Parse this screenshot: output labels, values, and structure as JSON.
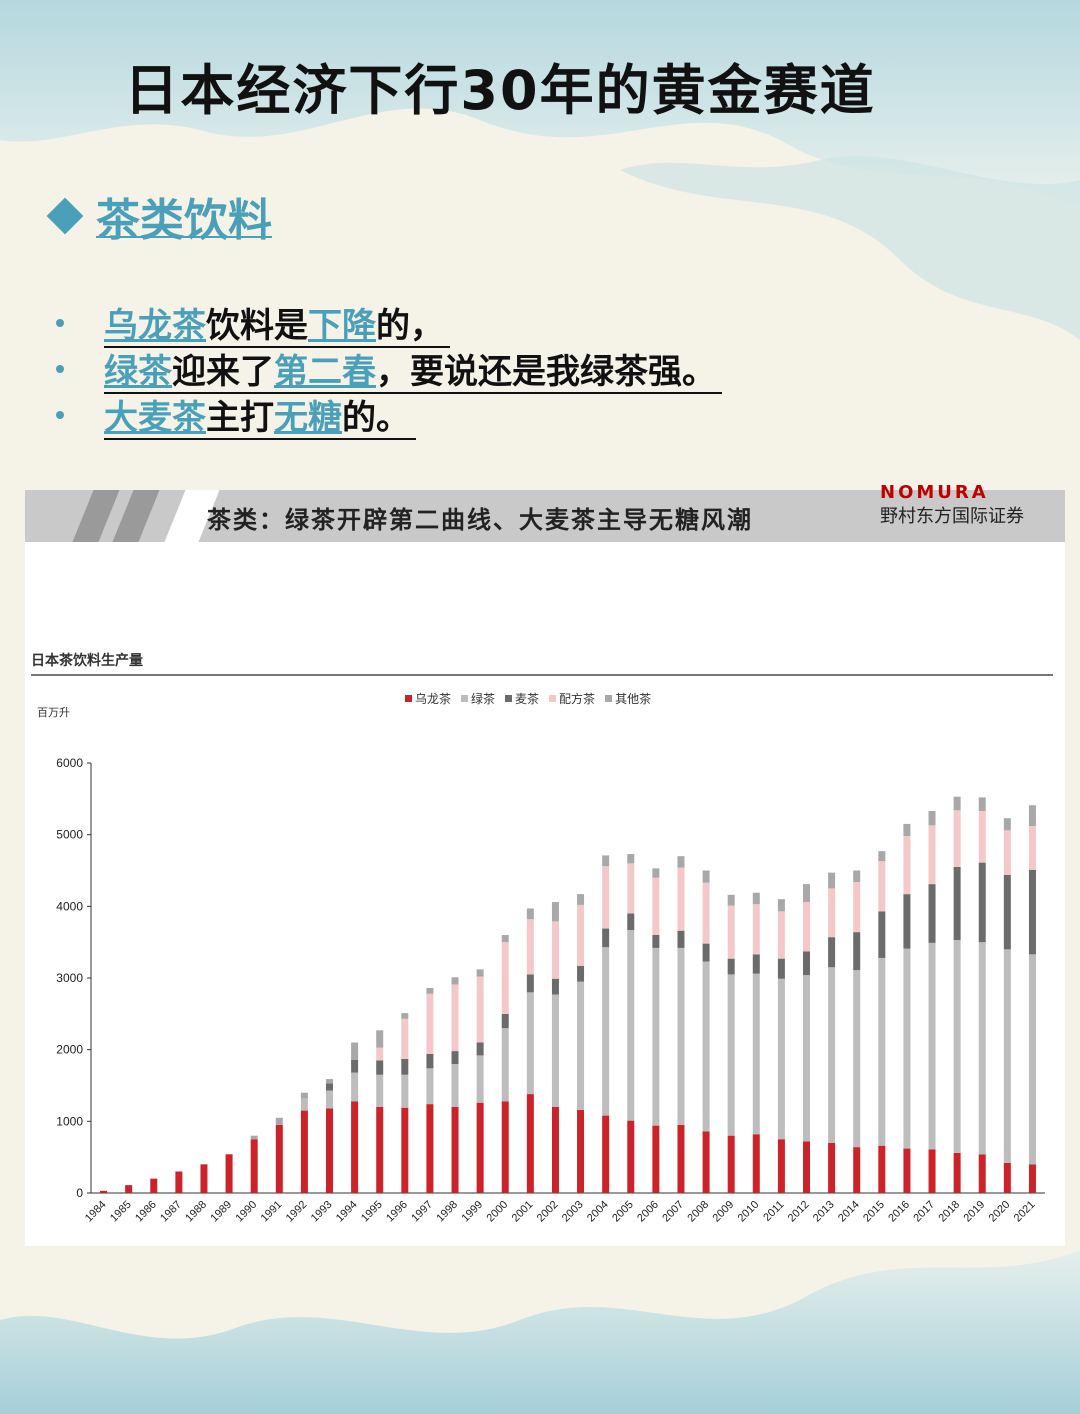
{
  "page": {
    "title": "日本经济下行30年的黄金赛道",
    "section": "茶类饮料",
    "bullets": [
      [
        {
          "t": "乌龙茶",
          "h": true
        },
        {
          "t": "饮料是",
          "h": false
        },
        {
          "t": "下降",
          "h": true
        },
        {
          "t": "的，",
          "h": false
        }
      ],
      [
        {
          "t": "绿茶",
          "h": true
        },
        {
          "t": "迎来了",
          "h": false
        },
        {
          "t": "第二春",
          "h": true
        },
        {
          "t": "，要说还是我绿茶强。",
          "h": false
        }
      ],
      [
        {
          "t": "大麦茶",
          "h": true
        },
        {
          "t": "主打",
          "h": false
        },
        {
          "t": "无糖",
          "h": true
        },
        {
          "t": "的。",
          "h": false
        }
      ]
    ]
  },
  "banner": {
    "title": "茶类：绿茶开辟第二曲线、大麦茶主导无糖风潮",
    "brand_logo": "NOMURA",
    "brand_name": "野村东方国际证券"
  },
  "chart_data": {
    "type": "bar",
    "stacked": true,
    "title": "日本茶饮料生产量",
    "ylabel": "百万升",
    "ylim": [
      0,
      6000
    ],
    "yticks": [
      "0",
      "1000",
      "2000",
      "3000",
      "4000",
      "5000",
      "6000"
    ],
    "legend_position": "top-center",
    "grid": false,
    "categories": [
      "1984",
      "1985",
      "1986",
      "1987",
      "1988",
      "1989",
      "1990",
      "1991",
      "1992",
      "1993",
      "1994",
      "1995",
      "1996",
      "1997",
      "1998",
      "1999",
      "2000",
      "2001",
      "2002",
      "2003",
      "2004",
      "2005",
      "2006",
      "2007",
      "2008",
      "2009",
      "2010",
      "2011",
      "2012",
      "2013",
      "2014",
      "2015",
      "2016",
      "2017",
      "2018",
      "2019",
      "2020",
      "2021"
    ],
    "series": [
      {
        "name": "乌龙茶",
        "color": "#cc2229",
        "values": [
          30,
          110,
          200,
          300,
          400,
          540,
          750,
          950,
          1150,
          1180,
          1280,
          1200,
          1190,
          1240,
          1200,
          1260,
          1280,
          1380,
          1200,
          1160,
          1080,
          1010,
          940,
          950,
          860,
          800,
          820,
          750,
          720,
          700,
          640,
          660,
          620,
          610,
          560,
          540,
          420,
          400
        ]
      },
      {
        "name": "绿茶",
        "color": "#bdbdbd",
        "values": [
          0,
          0,
          0,
          0,
          0,
          0,
          0,
          0,
          170,
          250,
          400,
          450,
          460,
          500,
          600,
          660,
          1020,
          1420,
          1570,
          1790,
          2350,
          2660,
          2480,
          2470,
          2370,
          2250,
          2240,
          2240,
          2320,
          2450,
          2470,
          2620,
          2790,
          2880,
          2970,
          2960,
          2980,
          2930
        ]
      },
      {
        "name": "麦茶",
        "color": "#6b6b6b",
        "values": [
          0,
          0,
          0,
          0,
          0,
          0,
          0,
          0,
          0,
          100,
          180,
          200,
          220,
          200,
          180,
          180,
          200,
          250,
          220,
          220,
          260,
          230,
          180,
          240,
          250,
          220,
          270,
          280,
          330,
          420,
          530,
          650,
          760,
          820,
          1020,
          1110,
          1040,
          1180
        ]
      },
      {
        "name": "配方茶",
        "color": "#f4c8c8",
        "values": [
          0,
          0,
          0,
          0,
          0,
          0,
          0,
          0,
          0,
          0,
          0,
          180,
          560,
          840,
          930,
          920,
          1000,
          770,
          800,
          850,
          870,
          700,
          800,
          880,
          850,
          740,
          700,
          660,
          690,
          680,
          700,
          700,
          810,
          820,
          790,
          720,
          620,
          610
        ]
      },
      {
        "name": "其他茶",
        "color": "#a8a8a8",
        "values": [
          0,
          0,
          0,
          0,
          0,
          0,
          50,
          100,
          80,
          60,
          240,
          240,
          80,
          80,
          100,
          100,
          100,
          150,
          270,
          150,
          150,
          130,
          130,
          160,
          170,
          150,
          160,
          170,
          250,
          220,
          160,
          140,
          170,
          200,
          190,
          190,
          170,
          290
        ]
      }
    ]
  }
}
